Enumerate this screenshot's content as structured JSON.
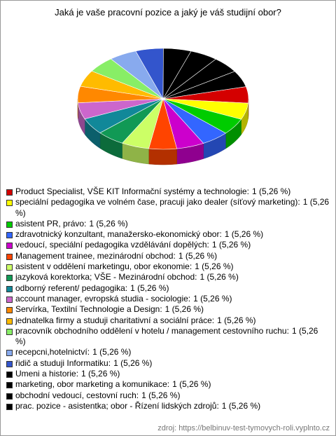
{
  "chart_data": {
    "type": "pie",
    "title": "Jaká je vaše pracovní pozice a jaký je váš studijní obor?",
    "categories": [
      "Product Specialist, VŠE KIT Informační systémy a technologie:",
      "speciální pedagogika ve volném čase, pracuji jako dealer (síťový marketing):",
      "asistent PR, právo:",
      "zdravotnický konzultant, manažersko-ekonomický obor:",
      "vedoucí, speciální pedagogika vzdělávání dopělých:",
      "Management trainee, mezinárodní obchod:",
      "asistent v oddělení marketingu, obor ekonomie:",
      "jazyková korektorka; VŠE - Mezinárodní obchod:",
      "odborný referent/ pedagogika:",
      "account manager, evropská studia - sociologie:",
      "Servírka, Textilní Technologie a Design:",
      "jednatelka firmy a studuji charitativní a sociální práce:",
      "pracovník obchodního oddělení v hotelu / management cestovního ruchu:",
      "recepcni,hotelnictví:",
      "řidič a studuji Informatiku:",
      "Umeni a historie:",
      "marketing, obor marketing a komunikace:",
      "obchodní vedoucí, cestovní ruch:",
      "prac. pozice - asistentka; obor - Řízení lidských zdrojů:"
    ],
    "values": [
      1,
      1,
      1,
      1,
      1,
      1,
      1,
      1,
      1,
      1,
      1,
      1,
      1,
      1,
      1,
      1,
      1,
      1,
      1
    ],
    "value_labels": [
      "1 (5,26 %)",
      "1 (5,26 %)",
      "1 (5,26 %)",
      "1 (5,26 %)",
      "1 (5,26 %)",
      "1 (5,26 %)",
      "1 (5,26 %)",
      "1 (5,26 %)",
      "1 (5,26 %)",
      "1 (5,26 %)",
      "1 (5,26 %)",
      "1 (5,26 %)",
      "1 (5,26 %)",
      "1 (5,26 %)",
      "1 (5,26 %)",
      "1 (5,26 %)",
      "1 (5,26 %)",
      "1 (5,26 %)",
      "1 (5,26 %)"
    ],
    "colors": [
      "#d40000",
      "#ffff00",
      "#00cc00",
      "#3366ff",
      "#cc00cc",
      "#ff4400",
      "#ccff66",
      "#119955",
      "#118899",
      "#cc66cc",
      "#ff8800",
      "#ffbb00",
      "#88ee66",
      "#88aaee",
      "#3355cc",
      "#000000",
      "#000000",
      "#000000",
      "#000000"
    ],
    "source": "zdroj: https://belbinuv-test-tymovych-roli.vyplnto.cz"
  }
}
